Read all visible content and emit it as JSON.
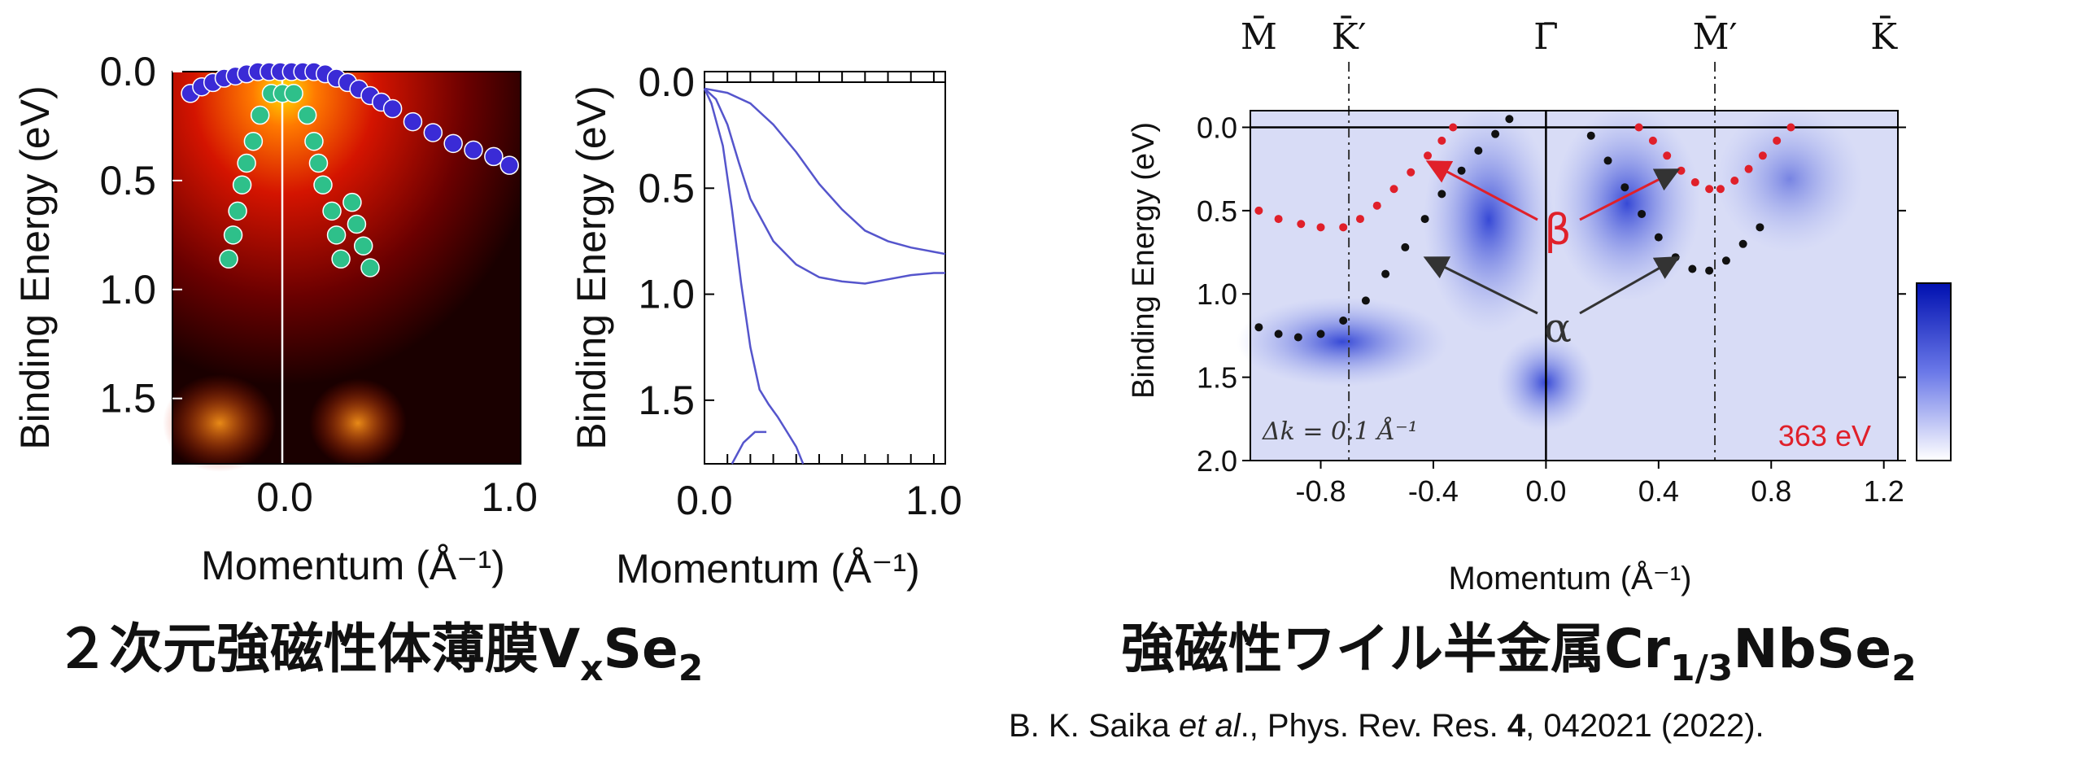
{
  "captions": {
    "left": {
      "main": "２次元強磁性体薄膜V",
      "sub1": "x",
      "mid": "Se",
      "sub2": "2"
    },
    "right": {
      "main": "強磁性ワイル半金属Cr",
      "sub1": "1/3",
      "mid": "NbSe",
      "sub2": "2"
    }
  },
  "citation": {
    "authors": "B. K. Saika ",
    "etal": "et al",
    "journal": "., Phys. Rev. Res. ",
    "volume": "4",
    "rest": ", 042021 (2022)."
  },
  "chart_data": [
    {
      "type": "heatmap",
      "title": "",
      "xlabel": "Momentum (Å⁻¹)",
      "ylabel": "Binding Energy (eV)",
      "xlim": [
        -0.5,
        1.05
      ],
      "ylim": [
        1.8,
        0.0
      ],
      "xticks": [
        "0.0",
        "1.0"
      ],
      "yticks": [
        "0.0",
        "0.5",
        "1.0",
        "1.5"
      ],
      "colormap": "black-red-yellow",
      "series": [
        {
          "color": "#3a2bd6",
          "points": [
            [
              -0.42,
              0.1
            ],
            [
              -0.37,
              0.07
            ],
            [
              -0.32,
              0.05
            ],
            [
              -0.27,
              0.03
            ],
            [
              -0.22,
              0.02
            ],
            [
              -0.17,
              0.01
            ],
            [
              -0.12,
              0.0
            ],
            [
              -0.07,
              0.0
            ],
            [
              -0.02,
              0.0
            ],
            [
              0.03,
              0.0
            ],
            [
              0.08,
              0.0
            ],
            [
              0.13,
              0.0
            ],
            [
              0.18,
              0.01
            ],
            [
              0.23,
              0.03
            ],
            [
              0.28,
              0.05
            ],
            [
              0.33,
              0.08
            ],
            [
              0.38,
              0.11
            ],
            [
              0.43,
              0.14
            ],
            [
              0.48,
              0.17
            ],
            [
              0.57,
              0.23
            ],
            [
              0.66,
              0.28
            ],
            [
              0.75,
              0.33
            ],
            [
              0.84,
              0.36
            ],
            [
              0.93,
              0.39
            ],
            [
              1.0,
              0.43
            ]
          ]
        },
        {
          "color": "#2ec08a",
          "points": [
            [
              -0.06,
              0.1
            ],
            [
              -0.01,
              0.1
            ],
            [
              0.04,
              0.1
            ],
            [
              -0.11,
              0.2
            ],
            [
              -0.14,
              0.32
            ],
            [
              -0.17,
              0.42
            ],
            [
              -0.19,
              0.52
            ],
            [
              -0.21,
              0.64
            ],
            [
              -0.23,
              0.75
            ],
            [
              -0.25,
              0.86
            ],
            [
              0.1,
              0.2
            ],
            [
              0.13,
              0.32
            ],
            [
              0.15,
              0.42
            ],
            [
              0.17,
              0.52
            ],
            [
              0.21,
              0.64
            ],
            [
              0.23,
              0.75
            ],
            [
              0.25,
              0.86
            ],
            [
              0.3,
              0.6
            ],
            [
              0.32,
              0.7
            ],
            [
              0.35,
              0.8
            ],
            [
              0.38,
              0.9
            ]
          ]
        }
      ]
    },
    {
      "type": "line",
      "title": "",
      "xlabel": "Momentum (Å⁻¹)",
      "ylabel": "Binding Energy (eV)",
      "xlim": [
        0.0,
        1.05
      ],
      "ylim": [
        1.8,
        -0.05
      ],
      "xticks": [
        "0.0",
        "1.0"
      ],
      "yticks": [
        "0.0",
        "0.5",
        "1.0",
        "1.5"
      ],
      "series": [
        {
          "color": "#5555cc",
          "x": [
            0.0,
            0.1,
            0.2,
            0.3,
            0.4,
            0.5,
            0.6,
            0.7,
            0.8,
            0.9,
            1.0,
            1.05
          ],
          "y": [
            0.03,
            0.05,
            0.1,
            0.2,
            0.33,
            0.48,
            0.6,
            0.7,
            0.75,
            0.78,
            0.8,
            0.81
          ]
        },
        {
          "color": "#5555cc",
          "x": [
            0.0,
            0.05,
            0.1,
            0.15,
            0.2,
            0.3,
            0.4,
            0.5,
            0.6,
            0.7,
            0.8,
            0.9,
            1.0,
            1.05
          ],
          "y": [
            0.03,
            0.08,
            0.2,
            0.38,
            0.55,
            0.75,
            0.86,
            0.92,
            0.94,
            0.95,
            0.93,
            0.91,
            0.9,
            0.9
          ]
        },
        {
          "color": "#5555cc",
          "x": [
            0.0,
            0.03,
            0.08,
            0.12,
            0.16,
            0.2,
            0.24,
            0.28,
            0.32,
            0.36,
            0.4,
            0.43
          ],
          "y": [
            0.03,
            0.1,
            0.3,
            0.6,
            0.95,
            1.25,
            1.45,
            1.52,
            1.58,
            1.65,
            1.72,
            1.8
          ]
        },
        {
          "color": "#5555cc",
          "x": [
            0.12,
            0.17,
            0.22,
            0.27
          ],
          "y": [
            1.8,
            1.7,
            1.65,
            1.65
          ]
        }
      ]
    },
    {
      "type": "heatmap",
      "title": "",
      "xlabel": "Momentum (Å⁻¹)",
      "ylabel": "Binding Energy (eV)",
      "xlim": [
        -1.05,
        1.25
      ],
      "ylim": [
        2.0,
        -0.1
      ],
      "xticks": [
        "-0.8",
        "-0.4",
        "0.0",
        "0.4",
        "0.8",
        "1.2"
      ],
      "yticks": [
        "0.0",
        "0.5",
        "1.0",
        "1.5",
        "2.0"
      ],
      "colormap": "white-blue",
      "high_symbol_points": [
        "M̄",
        "K̄′",
        "Γ̄",
        "M̄′",
        "K̄"
      ],
      "annotations": [
        "β",
        "α",
        "Δk = 0.1 Å⁻¹",
        "363 eV"
      ],
      "series": [
        {
          "color": "#e0202a",
          "name": "β",
          "x": [
            -1.02,
            -0.95,
            -0.87,
            -0.8,
            -0.72,
            -0.66,
            -0.6,
            -0.54,
            -0.48,
            -0.42,
            -0.37,
            -0.33
          ],
          "y": [
            0.5,
            0.55,
            0.58,
            0.6,
            0.6,
            0.55,
            0.47,
            0.37,
            0.27,
            0.17,
            0.08,
            0.0
          ]
        },
        {
          "color": "#e0202a",
          "name": "β",
          "x": [
            0.33,
            0.38,
            0.43,
            0.48,
            0.53,
            0.58,
            0.62,
            0.67,
            0.72,
            0.77,
            0.82,
            0.87
          ],
          "y": [
            0.0,
            0.08,
            0.17,
            0.26,
            0.33,
            0.37,
            0.37,
            0.32,
            0.25,
            0.17,
            0.08,
            0.0
          ]
        },
        {
          "color": "#111111",
          "name": "α",
          "x": [
            -1.02,
            -0.95,
            -0.88,
            -0.8,
            -0.72,
            -0.64,
            -0.57,
            -0.5,
            -0.43,
            -0.37,
            -0.3,
            -0.24,
            -0.18,
            -0.13
          ],
          "y": [
            1.2,
            1.24,
            1.26,
            1.24,
            1.16,
            1.04,
            0.88,
            0.72,
            0.55,
            0.4,
            0.26,
            0.14,
            0.04,
            -0.05
          ]
        },
        {
          "color": "#111111",
          "name": "α",
          "x": [
            0.16,
            0.22,
            0.28,
            0.34,
            0.4,
            0.46,
            0.52,
            0.58,
            0.64,
            0.7,
            0.76
          ],
          "y": [
            0.05,
            0.2,
            0.36,
            0.52,
            0.66,
            0.78,
            0.85,
            0.86,
            0.8,
            0.7,
            0.6
          ]
        }
      ]
    }
  ]
}
